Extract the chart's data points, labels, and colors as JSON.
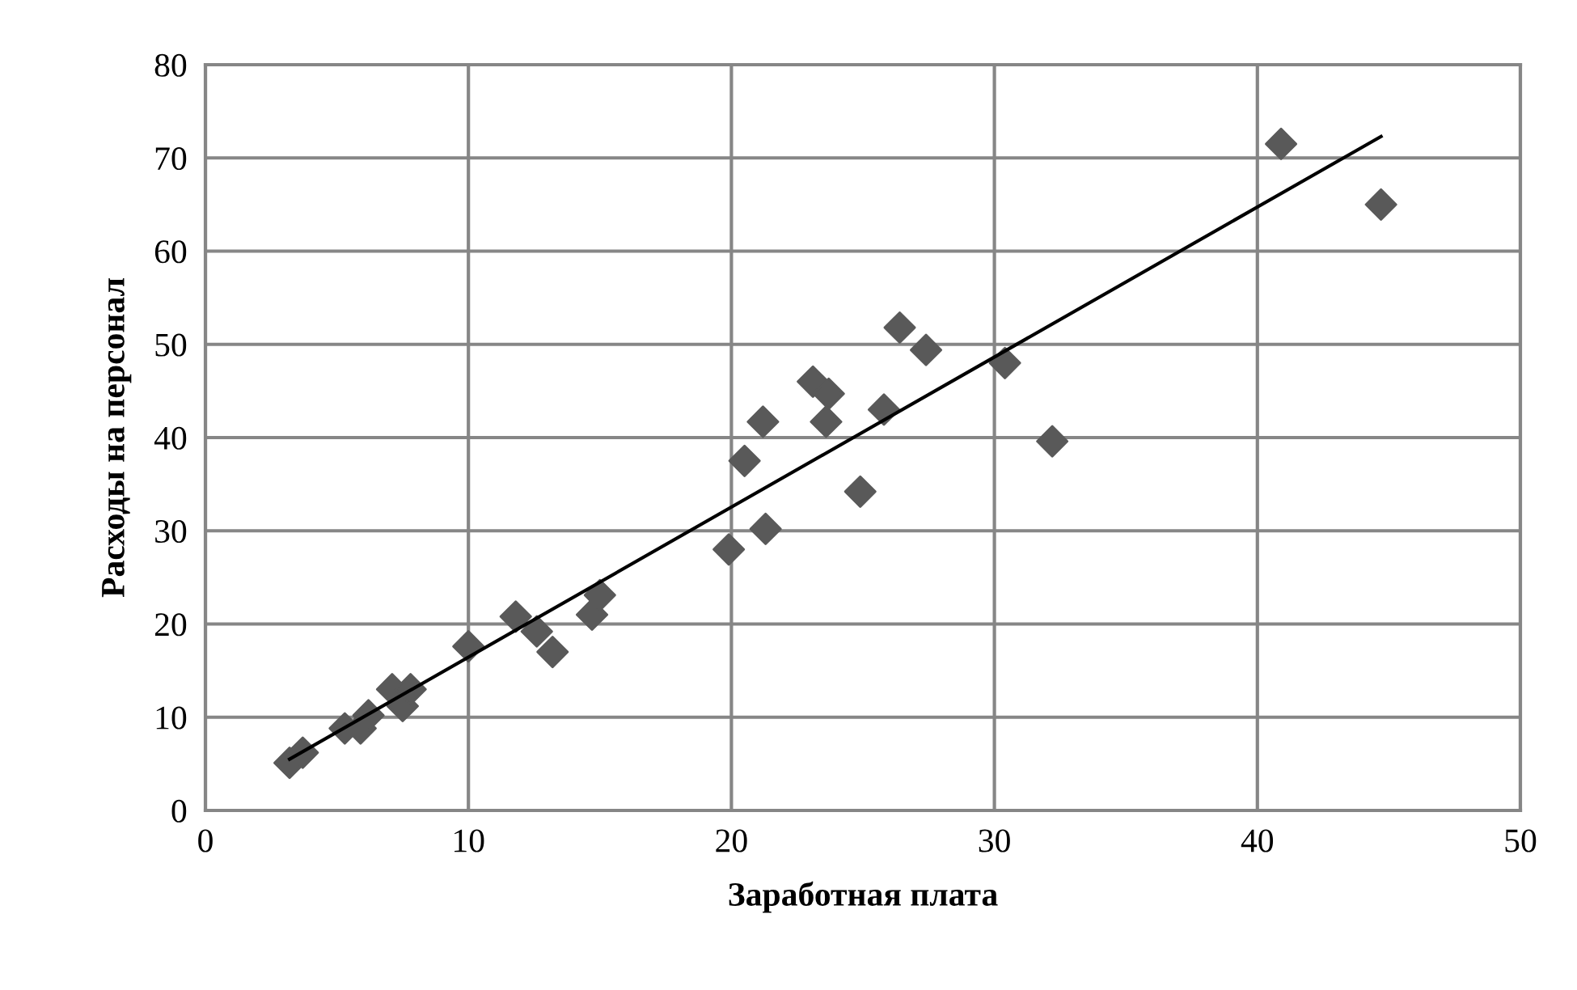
{
  "chart_data": {
    "type": "scatter",
    "xlabel": "Заработная плата",
    "ylabel": "Расходы на персонал",
    "xlim": [
      0,
      50
    ],
    "xticks": [
      0,
      10,
      20,
      30,
      40,
      50
    ],
    "ylim": [
      0,
      80
    ],
    "yticks": [
      0,
      10,
      20,
      30,
      40,
      50,
      60,
      70,
      80
    ],
    "grid": true,
    "legend": false,
    "series": [
      {
        "color": "#595959",
        "marker": "diamond",
        "x": [
          3.2,
          3.7,
          5.3,
          5.9,
          6.2,
          7.1,
          7.5,
          7.8,
          10,
          11.8,
          12.6,
          13.2,
          14.7,
          15,
          19.9,
          20.5,
          21.2,
          21.3,
          23.1,
          23.6,
          23.7,
          24.9,
          25.8,
          26.4,
          27.4,
          30.4,
          32.2,
          40.9,
          44.7
        ],
        "values": [
          5.1,
          6.2,
          8.8,
          8.8,
          10.2,
          13,
          11.2,
          13,
          17.6,
          20.8,
          19.2,
          17,
          21,
          23.1,
          28,
          37.5,
          41.7,
          30.2,
          46,
          41.7,
          44.7,
          34.2,
          43,
          51.8,
          49.4,
          48,
          39.6,
          71.5,
          65
        ]
      },
      {
        "type": "line",
        "color": "#000000",
        "marker": "none",
        "x": [
          3.2,
          44.7
        ],
        "values": [
          5.5,
          72.3
        ]
      }
    ]
  }
}
